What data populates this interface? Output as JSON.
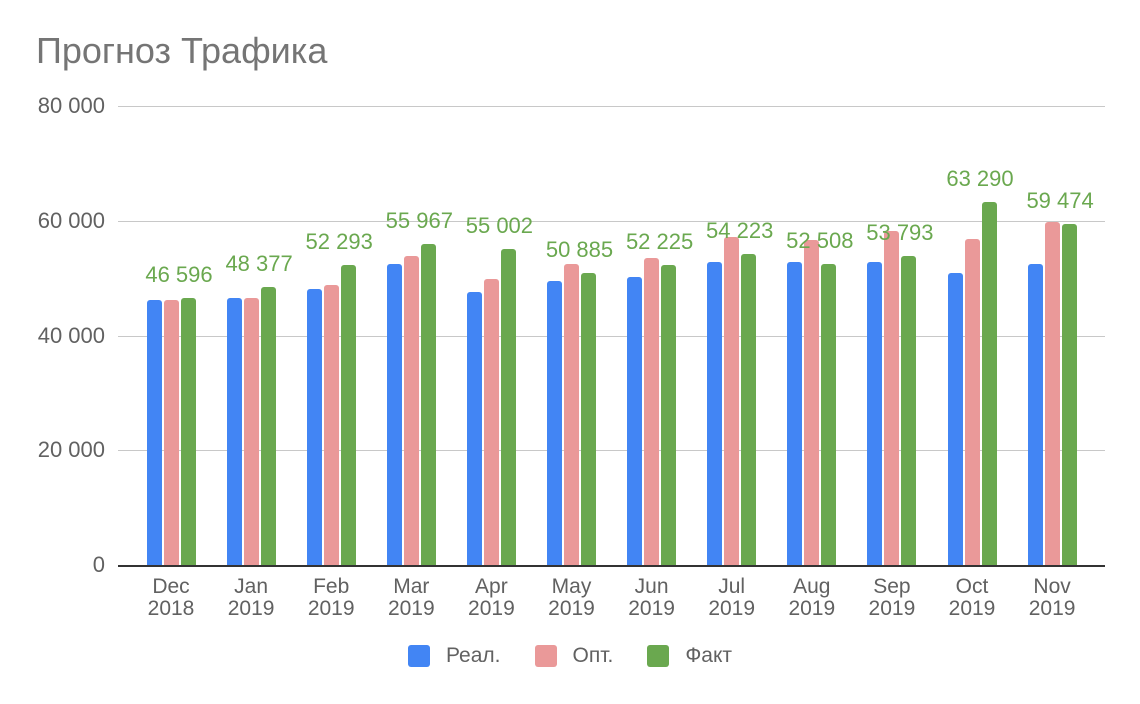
{
  "chart_data": {
    "type": "bar",
    "title": "Прогноз Трафика",
    "xlabel": "",
    "ylabel": "",
    "ylim": [
      0,
      80000
    ],
    "yticks": [
      0,
      20000,
      40000,
      60000,
      80000
    ],
    "ytick_labels": [
      "0",
      "20 000",
      "40 000",
      "60 000",
      "80 000"
    ],
    "grid": true,
    "legend_position": "bottom",
    "categories": [
      "Dec 2018",
      "Jan 2019",
      "Feb 2019",
      "Mar 2019",
      "Apr 2019",
      "May 2019",
      "Jun 2019",
      "Jul 2019",
      "Aug 2019",
      "Sep 2019",
      "Oct 2019",
      "Nov 2019"
    ],
    "category_lines": [
      [
        "Dec",
        "2018"
      ],
      [
        "Jan",
        "2019"
      ],
      [
        "Feb",
        "2019"
      ],
      [
        "Mar",
        "2019"
      ],
      [
        "Apr",
        "2019"
      ],
      [
        "May",
        "2019"
      ],
      [
        "Jun",
        "2019"
      ],
      [
        "Jul",
        "2019"
      ],
      [
        "Aug",
        "2019"
      ],
      [
        "Sep",
        "2019"
      ],
      [
        "Oct",
        "2019"
      ],
      [
        "Nov",
        "2019"
      ]
    ],
    "series": [
      {
        "name": "Реал.",
        "color": "#4285f4",
        "values": [
          46200,
          46500,
          48100,
          52500,
          47600,
          49500,
          50200,
          52800,
          52800,
          52800,
          50900,
          52500
        ]
      },
      {
        "name": "Опт.",
        "color": "#ea9999",
        "values": [
          46200,
          46500,
          48800,
          53900,
          49800,
          52500,
          53500,
          57200,
          56600,
          58200,
          56800,
          59800
        ]
      },
      {
        "name": "Факт",
        "color": "#6aa84f",
        "values": [
          46596,
          48377,
          52293,
          55967,
          55002,
          50885,
          52225,
          54223,
          52508,
          53793,
          63290,
          59474
        ],
        "data_labels": [
          "46 596",
          "48 377",
          "52 293",
          "55 967",
          "55 002",
          "50 885",
          "52 225",
          "54 223",
          "52 508",
          "53 793",
          "63 290",
          "59 474"
        ]
      }
    ]
  }
}
